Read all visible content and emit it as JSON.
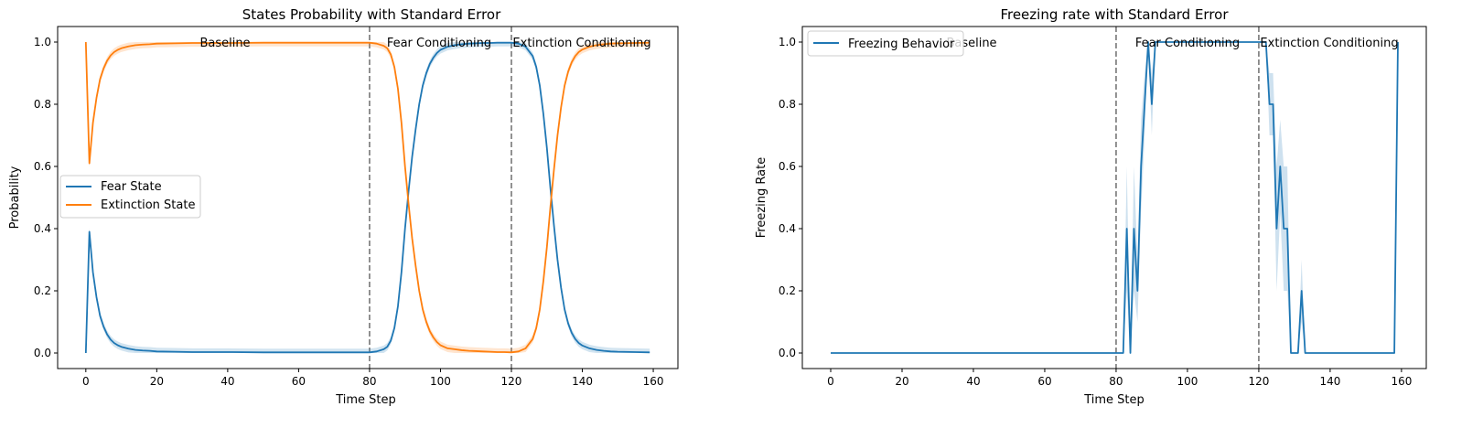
{
  "chart_data": [
    {
      "type": "line",
      "title": "States Probability with Standard Error",
      "xlabel": "Time Step",
      "ylabel": "Probability",
      "xlim": [
        -7.95,
        166.95
      ],
      "ylim": [
        -0.05,
        1.05
      ],
      "xticks": [
        0,
        20,
        40,
        60,
        80,
        100,
        120,
        140,
        160
      ],
      "yticks": [
        0.0,
        0.2,
        0.4,
        0.6,
        0.8,
        1.0
      ],
      "xtick_labels": [
        "0",
        "20",
        "40",
        "60",
        "80",
        "100",
        "120",
        "140",
        "160"
      ],
      "ytick_labels": [
        "0.0",
        "0.2",
        "0.4",
        "0.6",
        "0.8",
        "1.0"
      ],
      "vlines": [
        80,
        120
      ],
      "phase_labels": [
        {
          "text": "Baseline",
          "x": 40
        },
        {
          "text": "Fear Conditioning",
          "x": 100
        },
        {
          "text": "Extinction Conditioning",
          "x": 140
        }
      ],
      "legend_position": "center-left",
      "series": [
        {
          "name": "Fear State",
          "color": "#1f77b4",
          "x": [
            0,
            1,
            2,
            3,
            4,
            5,
            6,
            7,
            8,
            9,
            10,
            12,
            14,
            16,
            18,
            20,
            25,
            30,
            40,
            50,
            60,
            70,
            80,
            82,
            84,
            85,
            86,
            87,
            88,
            89,
            90,
            91,
            92,
            93,
            94,
            95,
            96,
            97,
            98,
            99,
            100,
            102,
            104,
            106,
            108,
            110,
            112,
            114,
            116,
            118,
            120,
            122,
            124,
            126,
            127,
            128,
            129,
            130,
            131,
            132,
            133,
            134,
            135,
            136,
            137,
            138,
            139,
            140,
            142,
            144,
            146,
            148,
            150,
            155,
            159
          ],
          "values": [
            0.0,
            0.39,
            0.26,
            0.18,
            0.12,
            0.085,
            0.06,
            0.043,
            0.032,
            0.025,
            0.02,
            0.014,
            0.01,
            0.008,
            0.007,
            0.005,
            0.004,
            0.003,
            0.003,
            0.002,
            0.002,
            0.002,
            0.002,
            0.005,
            0.012,
            0.02,
            0.04,
            0.08,
            0.15,
            0.26,
            0.4,
            0.52,
            0.63,
            0.72,
            0.8,
            0.86,
            0.9,
            0.93,
            0.95,
            0.965,
            0.975,
            0.985,
            0.99,
            0.993,
            0.995,
            0.996,
            0.997,
            0.997,
            0.998,
            0.998,
            0.998,
            0.995,
            0.985,
            0.955,
            0.92,
            0.86,
            0.77,
            0.66,
            0.53,
            0.41,
            0.3,
            0.21,
            0.14,
            0.095,
            0.065,
            0.045,
            0.032,
            0.024,
            0.015,
            0.01,
            0.007,
            0.005,
            0.004,
            0.003,
            0.002
          ]
        },
        {
          "name": "Extinction State",
          "color": "#ff7f0e",
          "x": [
            0,
            1,
            2,
            3,
            4,
            5,
            6,
            7,
            8,
            9,
            10,
            12,
            14,
            16,
            18,
            20,
            25,
            30,
            40,
            50,
            60,
            70,
            80,
            82,
            84,
            85,
            86,
            87,
            88,
            89,
            90,
            91,
            92,
            93,
            94,
            95,
            96,
            97,
            98,
            99,
            100,
            102,
            104,
            106,
            108,
            110,
            112,
            114,
            116,
            118,
            120,
            122,
            124,
            126,
            127,
            128,
            129,
            130,
            131,
            132,
            133,
            134,
            135,
            136,
            137,
            138,
            139,
            140,
            142,
            144,
            146,
            148,
            150,
            155,
            159
          ],
          "values": [
            1.0,
            0.61,
            0.74,
            0.82,
            0.88,
            0.915,
            0.94,
            0.957,
            0.968,
            0.975,
            0.98,
            0.986,
            0.99,
            0.992,
            0.993,
            0.995,
            0.996,
            0.997,
            0.997,
            0.998,
            0.998,
            0.998,
            0.998,
            0.995,
            0.988,
            0.98,
            0.96,
            0.92,
            0.85,
            0.74,
            0.6,
            0.48,
            0.37,
            0.28,
            0.2,
            0.14,
            0.1,
            0.07,
            0.05,
            0.035,
            0.025,
            0.015,
            0.012,
            0.009,
            0.007,
            0.006,
            0.005,
            0.004,
            0.003,
            0.003,
            0.002,
            0.005,
            0.015,
            0.045,
            0.08,
            0.14,
            0.23,
            0.34,
            0.47,
            0.59,
            0.7,
            0.79,
            0.86,
            0.905,
            0.935,
            0.955,
            0.968,
            0.976,
            0.985,
            0.99,
            0.993,
            0.995,
            0.996,
            0.997,
            0.998
          ]
        }
      ]
    },
    {
      "type": "line",
      "title": "Freezing rate with Standard Error",
      "xlabel": "Time Step",
      "ylabel": "Freezing Rate",
      "xlim": [
        -7.95,
        166.95
      ],
      "ylim": [
        -0.05,
        1.05
      ],
      "xticks": [
        0,
        20,
        40,
        60,
        80,
        100,
        120,
        140,
        160
      ],
      "yticks": [
        0.0,
        0.2,
        0.4,
        0.6,
        0.8,
        1.0
      ],
      "xtick_labels": [
        "0",
        "20",
        "40",
        "60",
        "80",
        "100",
        "120",
        "140",
        "160"
      ],
      "ytick_labels": [
        "0.0",
        "0.2",
        "0.4",
        "0.6",
        "0.8",
        "1.0"
      ],
      "vlines": [
        80,
        120
      ],
      "phase_labels": [
        {
          "text": "Baseline",
          "x": 40
        },
        {
          "text": "Fear Conditioning",
          "x": 100
        },
        {
          "text": "Extinction Conditioning",
          "x": 140
        }
      ],
      "legend_position": "upper-left",
      "series": [
        {
          "name": "Freezing Behavior",
          "color": "#1f77b4",
          "x": [
            0,
            81,
            82,
            83,
            84,
            85,
            86,
            87,
            88,
            89,
            90,
            91,
            92,
            93,
            94,
            95,
            96,
            100,
            110,
            119,
            120,
            121,
            122,
            123,
            124,
            125,
            126,
            127,
            128,
            129,
            130,
            131,
            132,
            133,
            134,
            140,
            150,
            158,
            159
          ],
          "values": [
            0,
            0,
            0,
            0.4,
            0,
            0.4,
            0.2,
            0.6,
            0.8,
            1.0,
            0.8,
            1.0,
            1.0,
            1.0,
            1.0,
            1.0,
            1.0,
            1.0,
            1.0,
            1.0,
            1.0,
            1.0,
            1.0,
            0.8,
            0.8,
            0.4,
            0.6,
            0.4,
            0.4,
            0.0,
            0.0,
            0.0,
            0.2,
            0.0,
            0.0,
            0.0,
            0.0,
            0.0,
            1.0
          ],
          "error": [
            0,
            0,
            0,
            0.2,
            0,
            0.2,
            0.1,
            0.15,
            0.1,
            0,
            0.1,
            0,
            0,
            0,
            0,
            0,
            0,
            0,
            0,
            0,
            0,
            0,
            0,
            0.1,
            0.1,
            0.2,
            0.15,
            0.2,
            0.2,
            0,
            0,
            0,
            0.1,
            0,
            0,
            0,
            0,
            0,
            0
          ]
        }
      ]
    }
  ]
}
